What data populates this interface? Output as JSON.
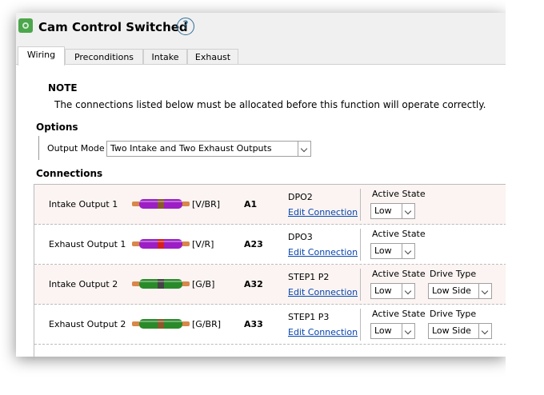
{
  "window": {
    "title": "Cam Control Switched",
    "help": "?"
  },
  "tabs": [
    "Wiring",
    "Preconditions",
    "Intake",
    "Exhaust"
  ],
  "note": {
    "title": "NOTE",
    "text": "The connections listed below must be allocated before this function will operate correctly."
  },
  "options": {
    "title": "Options",
    "output_mode": {
      "label": "Output Mode",
      "value": "Two Intake and Two Exhaust Outputs"
    }
  },
  "connections": {
    "title": "Connections",
    "rows": [
      {
        "name": "Intake Output 1",
        "wire": "[V/BR]",
        "pin": "A1",
        "output": "DPO2",
        "link": "Edit Connection",
        "active_state": {
          "label": "Active State",
          "value": "Low"
        }
      },
      {
        "name": "Exhaust Output 1",
        "wire": "[V/R]",
        "pin": "A23",
        "output": "DPO3",
        "link": "Edit Connection",
        "active_state": {
          "label": "Active State",
          "value": "Low"
        }
      },
      {
        "name": "Intake Output 2",
        "wire": "[G/B]",
        "pin": "A32",
        "output": "STEP1 P2",
        "link": "Edit Connection",
        "active_state": {
          "label": "Active State",
          "value": "Low"
        },
        "drive_type": {
          "label": "Drive Type",
          "value": "Low Side"
        }
      },
      {
        "name": "Exhaust Output 2",
        "wire": "[G/BR]",
        "pin": "A33",
        "output": "STEP1 P3",
        "link": "Edit Connection",
        "active_state": {
          "label": "Active State",
          "value": "Low"
        },
        "drive_type": {
          "label": "Drive Type",
          "value": "Low Side"
        }
      }
    ]
  }
}
